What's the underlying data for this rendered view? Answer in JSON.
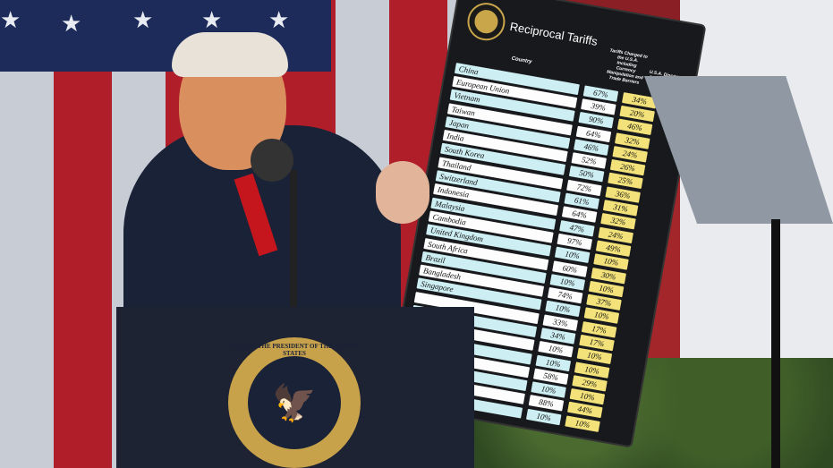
{
  "board": {
    "title": "Reciprocal Tariffs",
    "col_country": "Country",
    "col_charged": "Tariffs Charged to the U.S.A. Including Currency Manipulation and Trade Barriers",
    "col_discounted": "U.S.A. Discounted Reciprocal Tariffs",
    "rows": [
      {
        "country": "China",
        "charged": "67%",
        "discounted": "34%"
      },
      {
        "country": "European Union",
        "charged": "39%",
        "discounted": "20%"
      },
      {
        "country": "Vietnam",
        "charged": "90%",
        "discounted": "46%"
      },
      {
        "country": "Taiwan",
        "charged": "64%",
        "discounted": "32%"
      },
      {
        "country": "Japan",
        "charged": "46%",
        "discounted": "24%"
      },
      {
        "country": "India",
        "charged": "52%",
        "discounted": "26%"
      },
      {
        "country": "South Korea",
        "charged": "50%",
        "discounted": "25%"
      },
      {
        "country": "Thailand",
        "charged": "72%",
        "discounted": "36%"
      },
      {
        "country": "Switzerland",
        "charged": "61%",
        "discounted": "31%"
      },
      {
        "country": "Indonesia",
        "charged": "64%",
        "discounted": "32%"
      },
      {
        "country": "Malaysia",
        "charged": "47%",
        "discounted": "24%"
      },
      {
        "country": "Cambodia",
        "charged": "97%",
        "discounted": "49%"
      },
      {
        "country": "United Kingdom",
        "charged": "10%",
        "discounted": "10%"
      },
      {
        "country": "South Africa",
        "charged": "60%",
        "discounted": "30%"
      },
      {
        "country": "Brazil",
        "charged": "10%",
        "discounted": "10%"
      },
      {
        "country": "Bangladesh",
        "charged": "74%",
        "discounted": "37%"
      },
      {
        "country": "Singapore",
        "charged": "10%",
        "discounted": "10%"
      },
      {
        "country": "",
        "charged": "33%",
        "discounted": "17%"
      },
      {
        "country": "",
        "charged": "34%",
        "discounted": "17%"
      },
      {
        "country": "",
        "charged": "10%",
        "discounted": "10%"
      },
      {
        "country": "",
        "charged": "10%",
        "discounted": "10%"
      },
      {
        "country": "",
        "charged": "58%",
        "discounted": "29%"
      },
      {
        "country": "",
        "charged": "10%",
        "discounted": "10%"
      },
      {
        "country": "",
        "charged": "88%",
        "discounted": "44%"
      },
      {
        "country": "",
        "charged": "10%",
        "discounted": "10%"
      }
    ]
  },
  "podium": {
    "seal_text": "SEAL OF THE PRESIDENT OF THE UNITED STATES"
  },
  "colors": {
    "flag_red": "#b01e2a",
    "flag_blue": "#1d2b5a",
    "board": "#17191c",
    "discount_cell": "#f3e27a",
    "charged_cell": "#cdeef3"
  }
}
